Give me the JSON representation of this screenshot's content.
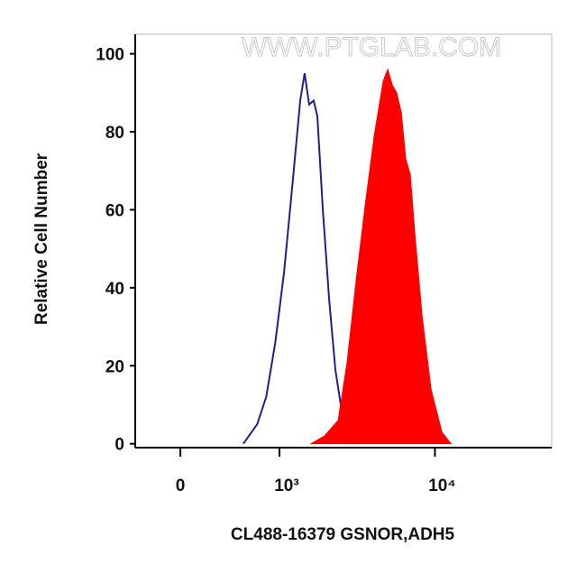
{
  "chart_data": {
    "type": "histogram-overlay",
    "watermark": "WWW.PTGLAB.COM",
    "x_label": "CL488-16379 GSNOR,ADH5",
    "y_label": "Relative Cell Number",
    "x_scale": "biexponential",
    "xlim": [
      -355,
      54000
    ],
    "xticks": [
      0,
      {
        "value": 1000,
        "label": "10³"
      },
      {
        "value": 10000,
        "label": "10⁴"
      }
    ],
    "ylim": [
      -1,
      105
    ],
    "yticks": [
      0,
      20,
      40,
      60,
      80,
      100
    ],
    "series": [
      {
        "color": "#1f1f8f",
        "style": "line",
        "x": [
          528,
          686,
          803,
          935,
          1077,
          1240,
          1387,
          1483,
          1590,
          1702,
          1798,
          1951,
          2144,
          2352,
          2616,
          3068
        ],
        "values": [
          0,
          5,
          12,
          26,
          44,
          68,
          88,
          95,
          87,
          88,
          84,
          60,
          37,
          19,
          7,
          0
        ]
      },
      {
        "color": "#ff0000",
        "style": "area",
        "x": [
          1636,
          2002,
          2449,
          2799,
          3190,
          3637,
          4150,
          4730,
          5050,
          5390,
          5751,
          6142,
          6558,
          7005,
          7478,
          8296,
          9454,
          11044,
          12598
        ],
        "values": [
          0,
          2,
          6,
          21,
          42,
          61,
          79,
          93,
          96,
          92,
          90,
          85,
          73,
          69,
          54,
          33,
          14,
          3,
          0
        ]
      }
    ]
  }
}
